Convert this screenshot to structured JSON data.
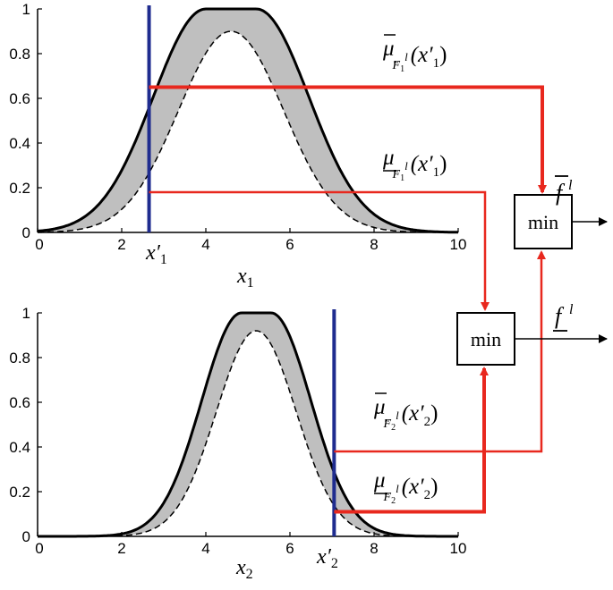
{
  "chart_data": [
    {
      "type": "area",
      "xlim": [
        0,
        10
      ],
      "ylim": [
        0,
        1
      ],
      "x_ticks": [
        "0",
        "2",
        "4",
        "6",
        "8",
        "10"
      ],
      "y_ticks": [
        "0",
        "0.2",
        "0.4",
        "0.6",
        "0.8",
        "1"
      ],
      "xlabel": "x₁",
      "upper_mf": {
        "shape": "flat-top gaussian",
        "left_center": 4.0,
        "right_center": 5.2,
        "sigma": 1.25,
        "height": 1.0
      },
      "lower_mf": {
        "shape": "gaussian",
        "center": 4.6,
        "sigma": 1.25,
        "height": 0.9
      },
      "input": {
        "label": "x′₁",
        "value": 2.65
      },
      "upper_degree": {
        "label": "μ̄(x′₁)",
        "value": 0.65
      },
      "lower_degree": {
        "label": "μ̲(x′₁)",
        "value": 0.18
      }
    },
    {
      "type": "area",
      "xlim": [
        0,
        10
      ],
      "ylim": [
        0,
        1
      ],
      "x_ticks": [
        "0",
        "2",
        "4",
        "6",
        "8",
        "10"
      ],
      "y_ticks": [
        "0",
        "0.2",
        "0.4",
        "0.6",
        "0.8",
        "1"
      ],
      "xlabel": "x₂",
      "upper_mf": {
        "shape": "flat-top gaussian",
        "left_center": 4.85,
        "right_center": 5.55,
        "sigma": 0.95,
        "height": 1.0
      },
      "lower_mf": {
        "shape": "gaussian",
        "center": 5.2,
        "sigma": 0.95,
        "height": 0.92
      },
      "input": {
        "label": "x′₂",
        "value": 7.05
      },
      "upper_degree": {
        "label": "μ̄(x′₂)",
        "value": 0.38
      },
      "lower_degree": {
        "label": "μ̲(x′₂)",
        "value": 0.11
      }
    }
  ],
  "operators": {
    "lower_min": {
      "label": "min",
      "output": "f"
    },
    "upper_min": {
      "label": "min",
      "output": "f"
    }
  },
  "colors": {
    "fou_fill": "#bfbfbf",
    "curve": "#000000",
    "input_line": "#1f2c8f",
    "signal": "#e8281e"
  }
}
